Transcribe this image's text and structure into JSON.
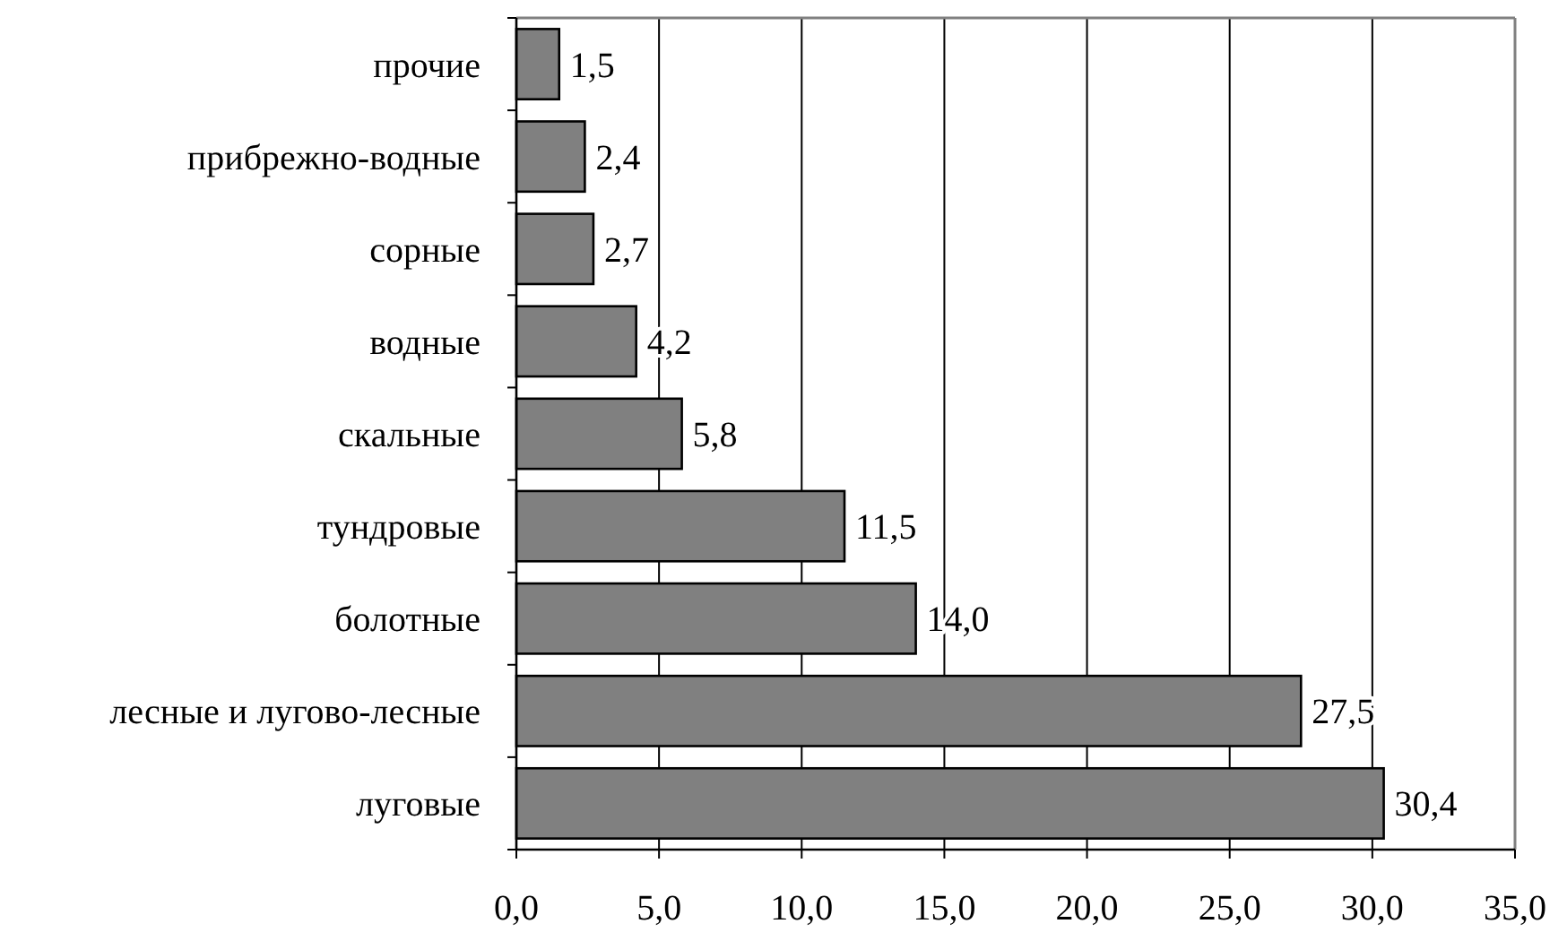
{
  "chart_data": {
    "type": "bar",
    "orientation": "horizontal",
    "categories": [
      "прочие",
      "прибрежно-водные",
      "сорные",
      "водные",
      "скальные",
      "тундровые",
      "болотные",
      "лесные и лугово-лесные",
      "луговые"
    ],
    "values": [
      1.5,
      2.4,
      2.7,
      4.2,
      5.8,
      11.5,
      14.0,
      27.5,
      30.4
    ],
    "value_labels": [
      "1,5",
      "2,4",
      "2,7",
      "4,2",
      "5,8",
      "11,5",
      "14,0",
      "27,5",
      "30,4"
    ],
    "color": "#808080",
    "xlim": [
      0,
      35
    ],
    "xticks": [
      {
        "value": 0,
        "label": "0,0"
      },
      {
        "value": 5,
        "label": "5,0"
      },
      {
        "value": 10,
        "label": "10,0"
      },
      {
        "value": 15,
        "label": "15,0"
      },
      {
        "value": 20,
        "label": "20,0"
      },
      {
        "value": 25,
        "label": "25,0"
      },
      {
        "value": 30,
        "label": "30,0"
      },
      {
        "value": 35,
        "label": "35,0"
      }
    ],
    "grid": "x"
  }
}
